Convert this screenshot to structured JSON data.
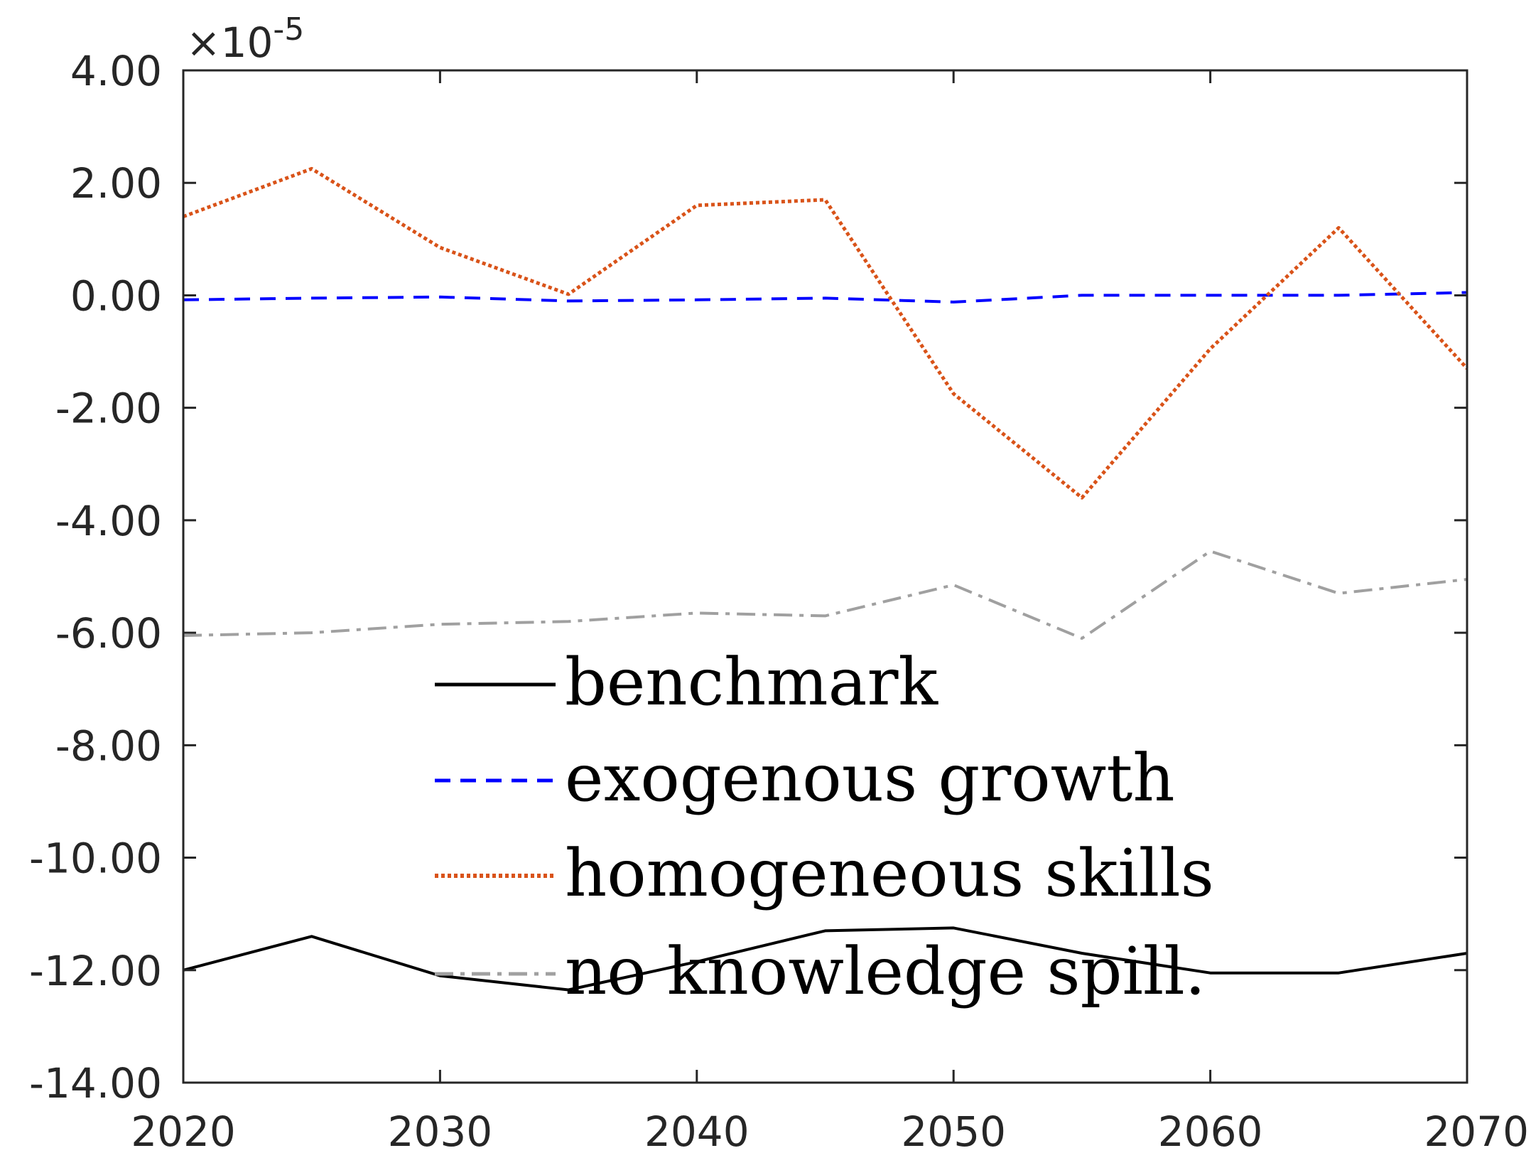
{
  "chart_data": {
    "type": "line",
    "title": "",
    "xlabel": "",
    "ylabel": "",
    "y_exponent_label": "×10",
    "y_exponent_power": "-5",
    "xlim": [
      2020,
      2070
    ],
    "ylim": [
      -14,
      4
    ],
    "x": [
      2020,
      2025,
      2030,
      2035,
      2040,
      2045,
      2050,
      2055,
      2060,
      2065,
      2070
    ],
    "x_ticks": [
      2020,
      2030,
      2040,
      2050,
      2060,
      2070
    ],
    "x_tick_labels": [
      "2020",
      "2030",
      "2040",
      "2050",
      "2060",
      "2070"
    ],
    "y_ticks": [
      4,
      2,
      0,
      -2,
      -4,
      -6,
      -8,
      -10,
      -12,
      -14
    ],
    "y_tick_labels": [
      "4.00",
      "2.00",
      "0.00",
      "-2.00",
      "-4.00",
      "-6.00",
      "-8.00",
      "-10.00",
      "-12.00",
      "-14.00"
    ],
    "grid": false,
    "legend_position": "lower-center",
    "series": [
      {
        "name": "benchmark",
        "color": "#000000",
        "dash": "solid",
        "values": [
          -12.0,
          -11.4,
          -12.1,
          -12.35,
          -11.85,
          -11.3,
          -11.25,
          -11.7,
          -12.05,
          -12.05,
          -11.7
        ]
      },
      {
        "name": "exogenous growth",
        "color": "#0000ff",
        "dash": "dashed",
        "values": [
          -0.08,
          -0.05,
          -0.03,
          -0.1,
          -0.08,
          -0.05,
          -0.12,
          0.0,
          0.0,
          0.0,
          0.05
        ]
      },
      {
        "name": "homogeneous skills",
        "color": "#d95319",
        "dash": "dotted",
        "values": [
          1.4,
          2.25,
          0.85,
          0.02,
          1.6,
          1.7,
          -1.75,
          -3.6,
          -0.95,
          1.2,
          -1.3
        ]
      },
      {
        "name": "no knowledge spill.",
        "color": "#a0a0a0",
        "dash": "dashdot",
        "values": [
          -6.05,
          -6.0,
          -5.85,
          -5.8,
          -5.65,
          -5.7,
          -5.15,
          -6.1,
          -4.55,
          -5.3,
          -5.05
        ]
      }
    ]
  }
}
